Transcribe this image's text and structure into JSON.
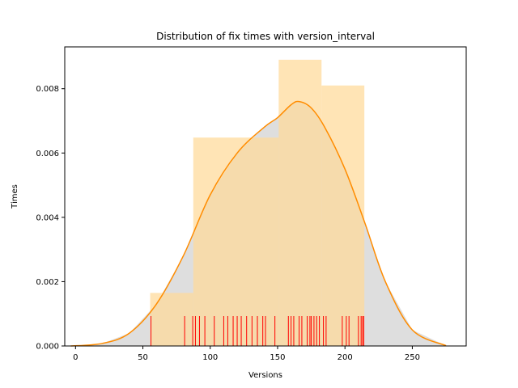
{
  "chart_data": {
    "type": "histogram",
    "title": "Distribution of fix times with version_interval",
    "xlabel": "Versions",
    "ylabel": "Times",
    "xlim": [
      -8,
      290
    ],
    "ylim": [
      0,
      0.0093
    ],
    "xticks": [
      0,
      50,
      100,
      150,
      200,
      250
    ],
    "yticks": [
      0.0,
      0.002,
      0.004,
      0.006,
      0.008
    ],
    "ytick_labels": [
      "0.000",
      "0.002",
      "0.004",
      "0.006",
      "0.008"
    ],
    "histogram": {
      "bin_edges": [
        55.4,
        87.4,
        150.8,
        182.6,
        214.4
      ],
      "densities": [
        0.00165,
        0.00648,
        0.0089,
        0.0081
      ],
      "bins": [
        {
          "x0": 55.4,
          "x1": 87.4,
          "value": 0.00165
        },
        {
          "x0": 87.4,
          "x1": 150.8,
          "value": 0.00648
        },
        {
          "x0": 150.8,
          "x1": 182.6,
          "value": 0.0089
        },
        {
          "x0": 182.6,
          "x1": 214.4,
          "value": 0.0081
        }
      ],
      "color": "#ffd998"
    },
    "kde": {
      "color": "#ff8c00",
      "fill_color": "#dedede",
      "x": [
        -3.5,
        20,
        40,
        60,
        80,
        100,
        120,
        140,
        150,
        160,
        166,
        175,
        185,
        200,
        215,
        230,
        250,
        275
      ],
      "y": [
        0.0,
        8e-05,
        0.0004,
        0.0013,
        0.0028,
        0.0047,
        0.006,
        0.0068,
        0.0071,
        0.0075,
        0.0076,
        0.0074,
        0.0068,
        0.0055,
        0.0038,
        0.002,
        0.0005,
        1e-05
      ]
    },
    "rug": {
      "color": "#ff0000",
      "height": 0.00093,
      "values": [
        56,
        81,
        87,
        89,
        92,
        96,
        103,
        110,
        113,
        117,
        120,
        123,
        127,
        131,
        135,
        139,
        141,
        148,
        158,
        160,
        162,
        166,
        168,
        172,
        174,
        175,
        177,
        179,
        181,
        184,
        186,
        198,
        201,
        203,
        210,
        212,
        213,
        214
      ]
    },
    "grid": false,
    "legend": "none"
  }
}
